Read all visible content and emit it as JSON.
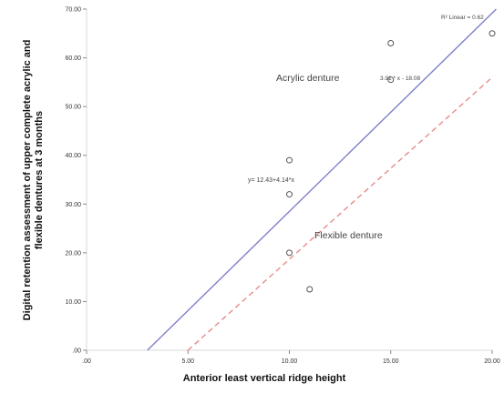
{
  "chart_data": {
    "type": "scatter",
    "xlabel": "Anterior least vertical ridge height",
    "ylabel_lines": [
      "Digital retention assessment of upper complete acrylic and",
      "flexible dentures at 3 months"
    ],
    "xlim": [
      0,
      20
    ],
    "ylim": [
      0,
      70
    ],
    "x_ticks": [
      0,
      5,
      10,
      15,
      20
    ],
    "x_tick_labels": [
      ".00",
      "5.00",
      "10.00",
      "15.00",
      "20.00"
    ],
    "y_ticks": [
      0,
      10,
      20,
      30,
      40,
      50,
      60,
      70
    ],
    "y_tick_labels": [
      ".00",
      "10.00",
      "20.00",
      "30.00",
      "40.00",
      "50.00",
      "60.00",
      "70.00"
    ],
    "points": [
      {
        "x": 10,
        "y": 39
      },
      {
        "x": 10,
        "y": 32
      },
      {
        "x": 10,
        "y": 20
      },
      {
        "x": 11,
        "y": 12.5
      },
      {
        "x": 15,
        "y": 63
      },
      {
        "x": 15,
        "y": 55.5
      },
      {
        "x": 20,
        "y": 65
      }
    ],
    "fit_lines": [
      {
        "style": "solid",
        "color": "#7f7fcc",
        "x0": 3,
        "y0": 0,
        "x1": 20.2,
        "y1": 70
      },
      {
        "style": "dashed",
        "color": "#e88a8a",
        "x0": 5,
        "y0": 0,
        "x1": 20,
        "y1": 56
      }
    ],
    "annotations": {
      "r2": "R² Linear = 0.62",
      "eq1": "3.91 * x - 18.08",
      "eq2": "y= 12.43+4.14*x",
      "label_acrylic": "Acrylic denture",
      "label_flexible": "Flexible denture"
    },
    "grid": false
  }
}
